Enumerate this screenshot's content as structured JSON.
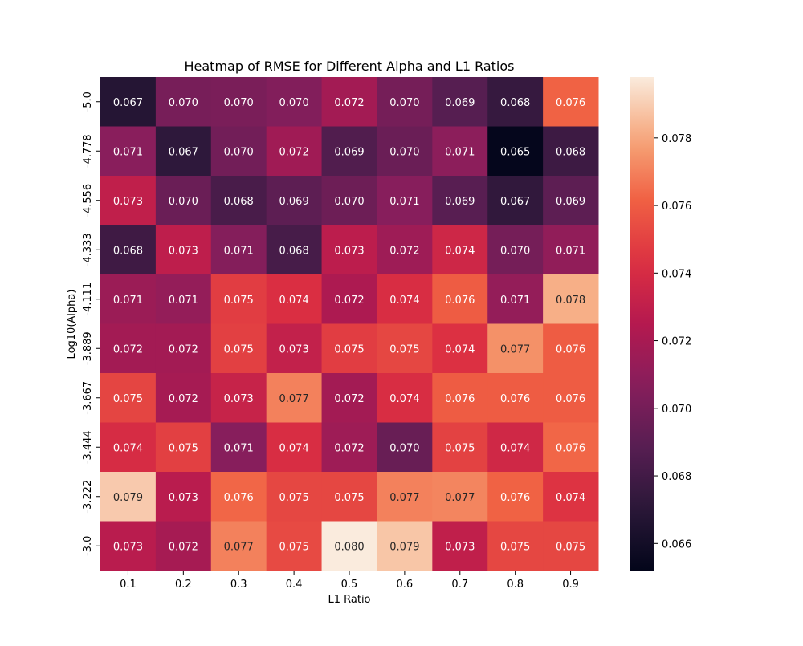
{
  "chart_data": {
    "type": "heatmap",
    "title": "Heatmap of RMSE for Different Alpha and L1 Ratios",
    "xlabel": "L1 Ratio",
    "ylabel": "Log10(Alpha)",
    "x_categories": [
      "0.1",
      "0.2",
      "0.3",
      "0.4",
      "0.5",
      "0.6",
      "0.7",
      "0.8",
      "0.9"
    ],
    "y_categories": [
      "-5.0",
      "-4.778",
      "-4.556",
      "-4.333",
      "-4.111",
      "-3.889",
      "-3.667",
      "-3.444",
      "-3.222",
      "-3.0"
    ],
    "values": [
      [
        0.0668,
        0.0701,
        0.0702,
        0.0705,
        0.0718,
        0.07,
        0.0688,
        0.0675,
        0.0762
      ],
      [
        0.0708,
        0.0672,
        0.0699,
        0.0717,
        0.0686,
        0.0696,
        0.0709,
        0.0653,
        0.0678
      ],
      [
        0.073,
        0.0696,
        0.0683,
        0.0691,
        0.0697,
        0.0707,
        0.0689,
        0.0673,
        0.0691
      ],
      [
        0.0679,
        0.0729,
        0.0706,
        0.0682,
        0.0728,
        0.0716,
        0.0736,
        0.07,
        0.0711
      ],
      [
        0.0715,
        0.0712,
        0.0748,
        0.0742,
        0.0722,
        0.0741,
        0.076,
        0.0712,
        0.0782
      ],
      [
        0.0718,
        0.0718,
        0.0749,
        0.0731,
        0.0748,
        0.0752,
        0.0743,
        0.0774,
        0.076
      ],
      [
        0.0751,
        0.0719,
        0.0733,
        0.077,
        0.0718,
        0.0741,
        0.076,
        0.076,
        0.076
      ],
      [
        0.074,
        0.0749,
        0.0707,
        0.0741,
        0.0716,
        0.0695,
        0.075,
        0.0737,
        0.0763
      ],
      [
        0.0789,
        0.0727,
        0.0763,
        0.0752,
        0.0752,
        0.077,
        0.0771,
        0.0762,
        0.0744
      ],
      [
        0.0727,
        0.0719,
        0.077,
        0.0753,
        0.0798,
        0.0788,
        0.073,
        0.0752,
        0.0752
      ]
    ],
    "value_format_decimals": 3,
    "colormap": "rocket",
    "vmin": 0.0652,
    "vmax": 0.0798,
    "colorbar_ticks": [
      "0.066",
      "0.068",
      "0.070",
      "0.072",
      "0.074",
      "0.076",
      "0.078"
    ],
    "colorbar_tick_values": [
      0.066,
      0.068,
      0.07,
      0.072,
      0.074,
      0.076,
      0.078
    ],
    "legend": "colorbar-right"
  }
}
